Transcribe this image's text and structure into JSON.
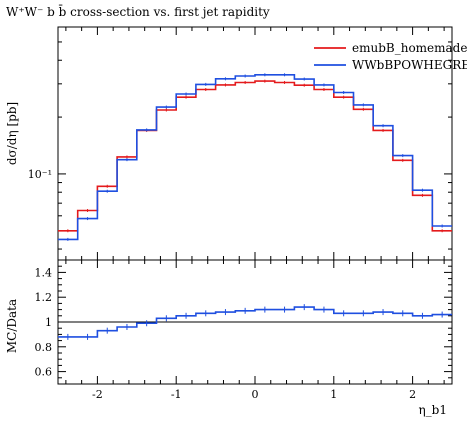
{
  "title": "W⁺W⁻ b b̄ cross-section vs. first jet rapidity",
  "chart_data": [
    {
      "type": "line",
      "panel": "main",
      "ylabel": "dσ/dη [pb]",
      "yscale": "log",
      "ylim": [
        0.035,
        0.6
      ],
      "xlim": [
        -2.5,
        2.5
      ],
      "grid": false,
      "legend_position": "top-right",
      "y_tick_labels": [
        "10⁻¹"
      ],
      "bin_edges": [
        -2.5,
        -2.25,
        -2.0,
        -1.75,
        -1.5,
        -1.25,
        -1.0,
        -0.75,
        -0.5,
        -0.25,
        0.0,
        0.25,
        0.5,
        0.75,
        1.0,
        1.25,
        1.5,
        1.75,
        2.0,
        2.25,
        2.5
      ],
      "series": [
        {
          "name": "emubB_homemade",
          "color": "#e41a1c",
          "values": [
            0.05,
            0.064,
            0.086,
            0.123,
            0.17,
            0.218,
            0.255,
            0.28,
            0.296,
            0.305,
            0.31,
            0.305,
            0.295,
            0.28,
            0.255,
            0.22,
            0.17,
            0.118,
            0.077,
            0.05
          ]
        },
        {
          "name": "WWbBPOWHEGRES",
          "color": "#1f4fe0",
          "values": [
            0.045,
            0.058,
            0.081,
            0.119,
            0.171,
            0.226,
            0.265,
            0.298,
            0.319,
            0.33,
            0.335,
            0.335,
            0.318,
            0.296,
            0.27,
            0.232,
            0.18,
            0.125,
            0.082,
            0.053
          ]
        }
      ]
    },
    {
      "type": "line",
      "panel": "ratio",
      "ylabel": "MC/Data",
      "xlabel": "η_b1",
      "xlim": [
        -2.5,
        2.5
      ],
      "ylim": [
        0.5,
        1.5
      ],
      "reference_line": 1.0,
      "x_tick_labels": [
        "-2",
        "-1",
        "0",
        "1",
        "2"
      ],
      "y_tick_labels": [
        "0.6",
        "0.8",
        "1",
        "1.2",
        "1.4"
      ],
      "bin_edges": [
        -2.5,
        -2.25,
        -2.0,
        -1.75,
        -1.5,
        -1.25,
        -1.0,
        -0.75,
        -0.5,
        -0.25,
        0.0,
        0.25,
        0.5,
        0.75,
        1.0,
        1.25,
        1.5,
        1.75,
        2.0,
        2.25,
        2.5
      ],
      "series": [
        {
          "name": "WWbBPOWHEGRES",
          "color": "#1f4fe0",
          "values": [
            0.88,
            0.88,
            0.93,
            0.96,
            0.99,
            1.03,
            1.05,
            1.07,
            1.08,
            1.09,
            1.1,
            1.1,
            1.12,
            1.1,
            1.07,
            1.07,
            1.08,
            1.07,
            1.05,
            1.06
          ]
        }
      ]
    }
  ]
}
